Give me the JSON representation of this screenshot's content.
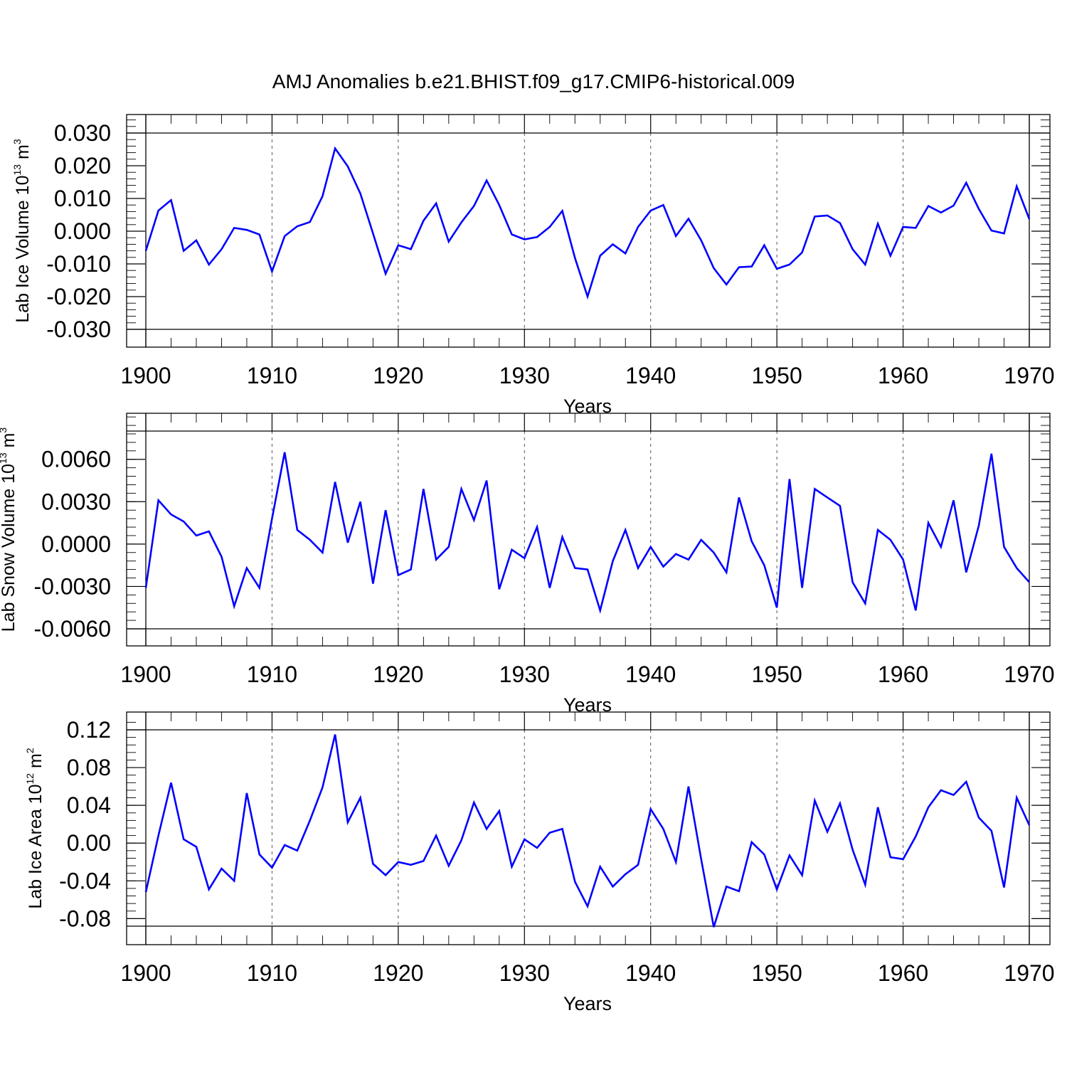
{
  "title": "AMJ Anomalies b.e21.BHIST.f09_g17.CMIP6-historical.009",
  "series_color": "#0000ff",
  "chart_data": [
    {
      "type": "line",
      "xlabel": "Years",
      "ylabel": "Lab Ice Volume 10",
      "ylabel_exp": "13",
      "ylabel_unit": " m",
      "ylabel_unit_exp": "3",
      "xlim": [
        1900,
        1970
      ],
      "ylim": [
        -0.03,
        0.03
      ],
      "yticks": [
        -0.03,
        -0.02,
        -0.01,
        0.0,
        0.01,
        0.02,
        0.03
      ],
      "ytick_labels": [
        "-0.030",
        "-0.020",
        "-0.010",
        "0.000",
        "0.010",
        "0.020",
        "0.030"
      ],
      "yminor_step": 0.002,
      "xticks": [
        1900,
        1910,
        1920,
        1930,
        1940,
        1950,
        1960,
        1970
      ],
      "xtick_labels": [
        "1900",
        "1910",
        "1920",
        "1930",
        "1940",
        "1950",
        "1960",
        "1970"
      ],
      "grid_x": [
        1910,
        1920,
        1930,
        1940,
        1950,
        1960
      ],
      "x_start": 1900,
      "values": [
        -0.006,
        0.0063,
        0.0095,
        -0.006,
        -0.0028,
        -0.0102,
        -0.0055,
        0.001,
        0.0004,
        -0.001,
        -0.0123,
        -0.0015,
        0.0015,
        0.0028,
        0.0107,
        0.0253,
        0.0198,
        0.0115,
        -0.0007,
        -0.013,
        -0.0043,
        -0.0055,
        0.0032,
        0.0085,
        -0.0032,
        0.0027,
        0.0077,
        0.0155,
        0.008,
        -0.001,
        -0.0025,
        -0.0018,
        0.0013,
        0.0062,
        -0.0082,
        -0.02,
        -0.0075,
        -0.004,
        -0.0068,
        0.0013,
        0.0063,
        0.008,
        -0.0015,
        0.0038,
        -0.0028,
        -0.0113,
        -0.0163,
        -0.011,
        -0.0108,
        -0.0043,
        -0.0115,
        -0.0102,
        -0.0065,
        0.0045,
        0.0048,
        0.0025,
        -0.0055,
        -0.0102,
        0.0023,
        -0.0075,
        0.0013,
        0.001,
        0.0077,
        0.0057,
        0.0078,
        0.0148,
        0.0068,
        0.0002,
        -0.0007,
        0.0137,
        0.0037
      ]
    },
    {
      "type": "line",
      "xlabel": "Years",
      "ylabel": "Lab Snow Volume 10",
      "ylabel_exp": "13",
      "ylabel_unit": " m",
      "ylabel_unit_exp": "3",
      "xlim": [
        1900,
        1970
      ],
      "ylim": [
        -0.006,
        0.008
      ],
      "yticks": [
        -0.006,
        -0.003,
        0.0,
        0.003,
        0.006
      ],
      "ytick_labels": [
        "-0.0060",
        "-0.0030",
        "0.0000",
        "0.0030",
        "0.0060"
      ],
      "yminor_step": 0.0006,
      "xticks": [
        1900,
        1910,
        1920,
        1930,
        1940,
        1950,
        1960,
        1970
      ],
      "xtick_labels": [
        "1900",
        "1910",
        "1920",
        "1930",
        "1940",
        "1950",
        "1960",
        "1970"
      ],
      "grid_x": [
        1910,
        1920,
        1930,
        1940,
        1950,
        1960
      ],
      "x_start": 1900,
      "values": [
        -0.0031,
        0.0031,
        0.0021,
        0.0016,
        0.0006,
        0.0009,
        -0.0009,
        -0.0044,
        -0.0017,
        -0.0031,
        0.0018,
        0.0065,
        0.001,
        0.0003,
        -0.0006,
        0.0044,
        0.0001,
        0.003,
        -0.0028,
        0.0024,
        -0.0022,
        -0.0018,
        0.0039,
        -0.0011,
        -0.0002,
        0.0039,
        0.0017,
        0.0045,
        -0.0032,
        -0.0004,
        -0.001,
        0.0012,
        -0.0031,
        0.0005,
        -0.0017,
        -0.0018,
        -0.0047,
        -0.0012,
        0.001,
        -0.0017,
        -0.0002,
        -0.0016,
        -0.0007,
        -0.0011,
        0.0003,
        -0.0006,
        -0.002,
        0.0033,
        0.0002,
        -0.0015,
        -0.0045,
        0.0046,
        -0.0031,
        0.0039,
        0.0033,
        0.0027,
        -0.0027,
        -0.0042,
        0.001,
        0.0003,
        -0.0011,
        -0.0047,
        0.0015,
        -0.0002,
        0.0031,
        -0.002,
        0.0013,
        0.0064,
        -0.0002,
        -0.0017,
        -0.0027
      ]
    },
    {
      "type": "line",
      "xlabel": "Years",
      "ylabel": "Lab Ice Area 10",
      "ylabel_exp": "12",
      "ylabel_unit": " m",
      "ylabel_unit_exp": "2",
      "xlim": [
        1900,
        1970
      ],
      "ylim": [
        -0.09,
        0.12
      ],
      "yticks": [
        -0.08,
        -0.04,
        0.0,
        0.04,
        0.08,
        0.12
      ],
      "ytick_labels": [
        "-0.08",
        "-0.04",
        "0.00",
        "0.04",
        "0.08",
        "0.12"
      ],
      "yminor_step": 0.008,
      "xticks": [
        1900,
        1910,
        1920,
        1930,
        1940,
        1950,
        1960,
        1970
      ],
      "xtick_labels": [
        "1900",
        "1910",
        "1920",
        "1930",
        "1940",
        "1950",
        "1960",
        "1970"
      ],
      "grid_x": [
        1910,
        1920,
        1930,
        1940,
        1950,
        1960
      ],
      "x_start": 1900,
      "values": [
        -0.052,
        0.008,
        0.064,
        0.004,
        -0.004,
        -0.049,
        -0.027,
        -0.04,
        0.053,
        -0.012,
        -0.026,
        -0.002,
        -0.008,
        0.024,
        0.059,
        0.115,
        0.022,
        0.048,
        -0.022,
        -0.034,
        -0.02,
        -0.023,
        -0.019,
        0.008,
        -0.024,
        0.003,
        0.043,
        0.015,
        0.034,
        -0.025,
        0.004,
        -0.005,
        0.011,
        0.015,
        -0.041,
        -0.067,
        -0.025,
        -0.046,
        -0.033,
        -0.023,
        0.036,
        0.015,
        -0.02,
        0.06,
        -0.017,
        -0.089,
        -0.046,
        -0.051,
        0.001,
        -0.012,
        -0.049,
        -0.013,
        -0.034,
        0.045,
        0.012,
        0.042,
        -0.007,
        -0.044,
        0.038,
        -0.015,
        -0.017,
        0.007,
        0.038,
        0.056,
        0.051,
        0.065,
        0.027,
        0.013,
        -0.047,
        0.048,
        0.019
      ]
    }
  ]
}
